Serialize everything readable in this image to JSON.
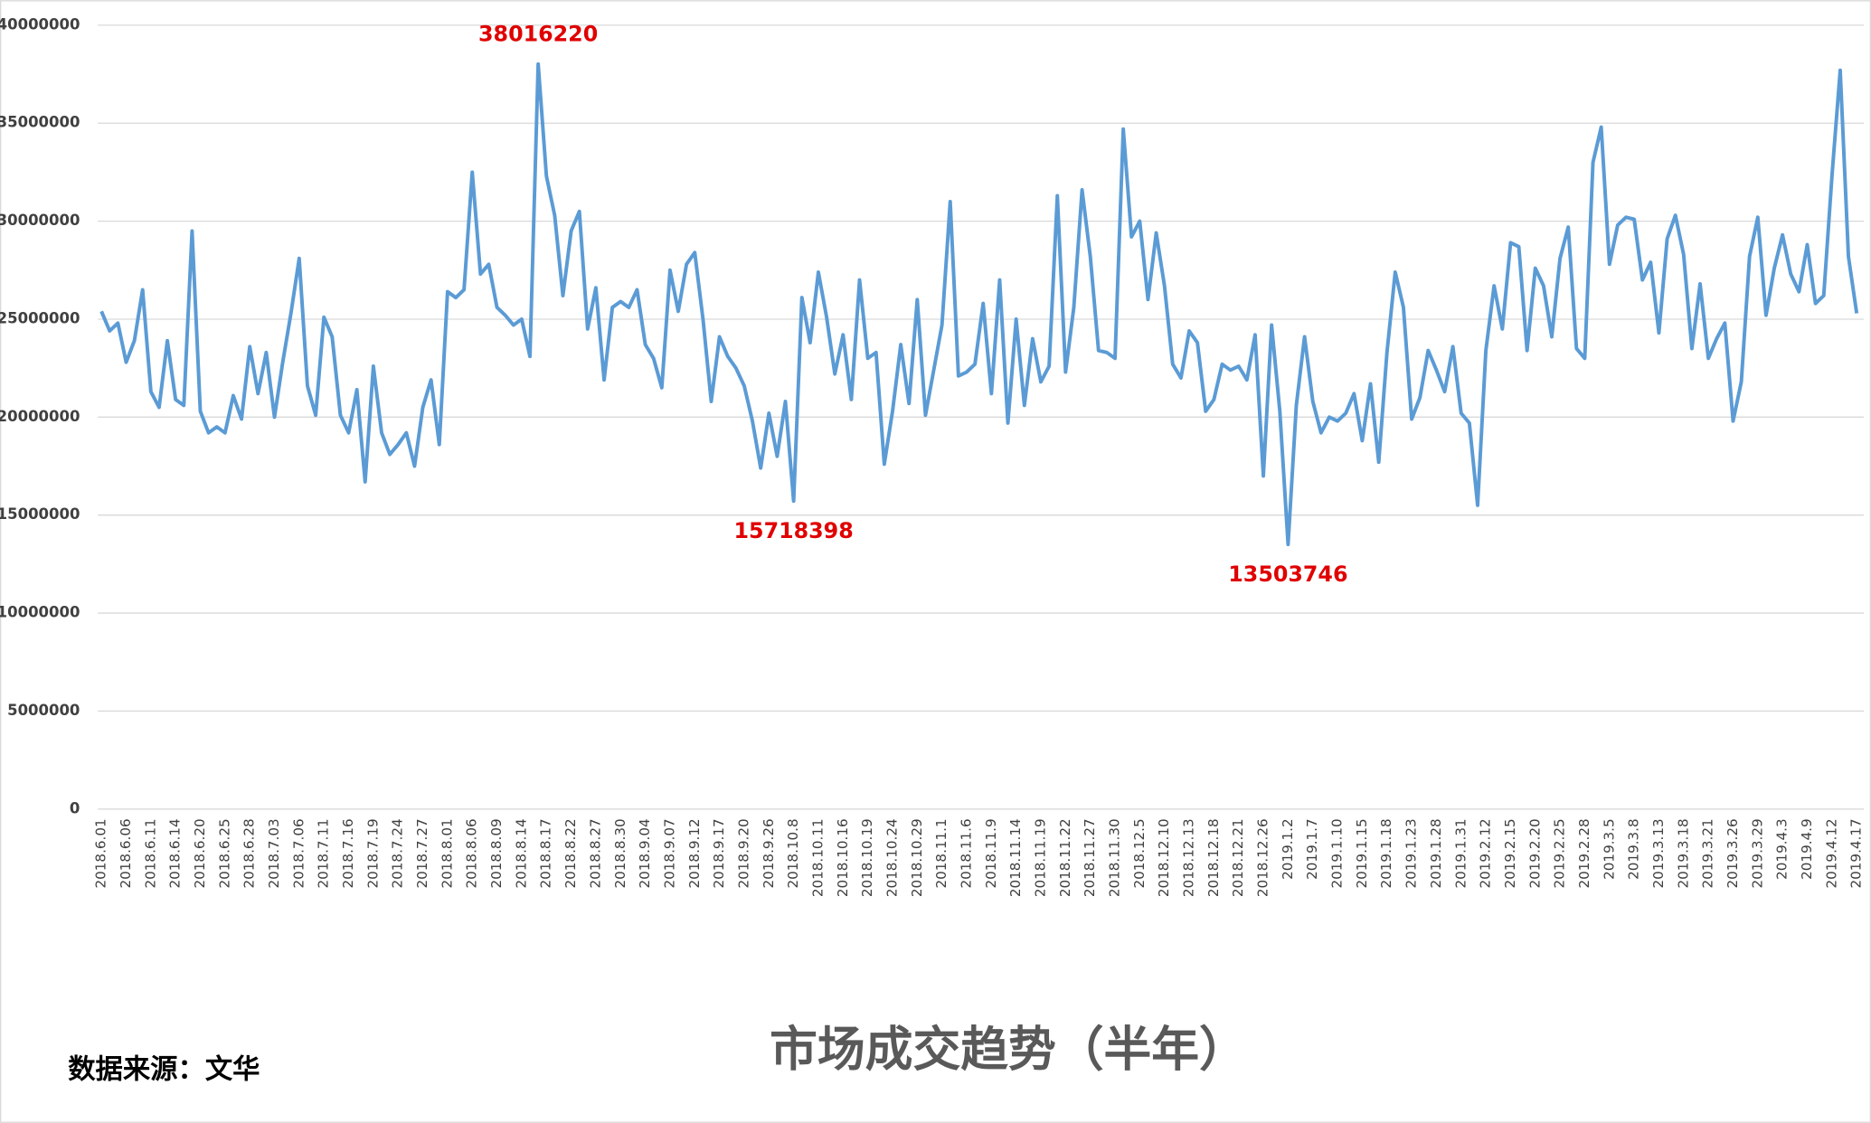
{
  "chart_data": {
    "type": "line",
    "title": "市场成交趋势（半年）",
    "source": "数据来源：文华",
    "grid": true,
    "ylim": [
      0,
      40000000
    ],
    "yticks": [
      0,
      5000000,
      10000000,
      15000000,
      20000000,
      25000000,
      30000000,
      35000000,
      40000000
    ],
    "categories": [
      "2018.6.01",
      null,
      null,
      "2018.6.06",
      null,
      null,
      "2018.6.11",
      null,
      null,
      "2018.6.14",
      null,
      null,
      "2018.6.20",
      null,
      null,
      "2018.6.25",
      null,
      null,
      "2018.6.28",
      null,
      null,
      "2018.7.03",
      null,
      null,
      "2018.7.06",
      null,
      null,
      "2018.7.11",
      null,
      null,
      "2018.7.16",
      null,
      null,
      "2018.7.19",
      null,
      null,
      "2018.7.24",
      null,
      null,
      "2018.7.27",
      null,
      null,
      "2018.8.01",
      null,
      null,
      "2018.8.06",
      null,
      null,
      "2018.8.09",
      null,
      null,
      "2018.8.14",
      null,
      null,
      "2018.8.17",
      null,
      null,
      "2018.8.22",
      null,
      null,
      "2018.8.27",
      null,
      null,
      "2018.8.30",
      null,
      null,
      "2018.9.04",
      null,
      null,
      "2018.9.07",
      null,
      null,
      "2018.9.12",
      null,
      null,
      "2018.9.17",
      null,
      null,
      "2018.9.20",
      null,
      null,
      "2018.9.26",
      null,
      null,
      "2018.10.8",
      null,
      null,
      "2018.10.11",
      null,
      null,
      "2018.10.16",
      null,
      null,
      "2018.10.19",
      null,
      null,
      "2018.10.24",
      null,
      null,
      "2018.10.29",
      null,
      null,
      "2018.11.1",
      null,
      null,
      "2018.11.6",
      null,
      null,
      "2018.11.9",
      null,
      null,
      "2018.11.14",
      null,
      null,
      "2018.11.19",
      null,
      null,
      "2018.11.22",
      null,
      null,
      "2018.11.27",
      null,
      null,
      "2018.11.30",
      null,
      null,
      "2018.12.5",
      null,
      null,
      "2018.12.10",
      null,
      null,
      "2018.12.13",
      null,
      null,
      "2018.12.18",
      null,
      null,
      "2018.12.21",
      null,
      null,
      "2018.12.26",
      null,
      null,
      "2019.1.2",
      null,
      null,
      "2019.1.7",
      null,
      null,
      "2019.1.10",
      null,
      null,
      "2019.1.15",
      null,
      null,
      "2019.1.18",
      null,
      null,
      "2019.1.23",
      null,
      null,
      "2019.1.28",
      null,
      null,
      "2019.1.31",
      null,
      null,
      "2019.2.12",
      null,
      null,
      "2019.2.15",
      null,
      null,
      "2019.2.20",
      null,
      null,
      "2019.2.25",
      null,
      null,
      "2019.2.28",
      null,
      null,
      "2019.3.5",
      null,
      null,
      "2019.3.8",
      null,
      null,
      "2019.3.13",
      null,
      null,
      "2019.3.18",
      null,
      null,
      "2019.3.21",
      null,
      null,
      "2019.3.26",
      null,
      null,
      "2019.3.29",
      null,
      null,
      "2019.4.3",
      null,
      null,
      "2019.4.9",
      null,
      null,
      "2019.4.12",
      null,
      null,
      "2019.4.17"
    ],
    "series": [
      {
        "color": "#5b9bd5",
        "values": [
          25400000,
          24400000,
          24800000,
          22800000,
          23900000,
          26500000,
          21300000,
          20500000,
          23900000,
          20900000,
          20600000,
          29500000,
          20300000,
          19200000,
          19500000,
          19200000,
          21100000,
          19900000,
          23600000,
          21200000,
          23300000,
          20000000,
          22800000,
          25300000,
          28100000,
          21600000,
          20100000,
          25100000,
          24100000,
          20100000,
          19200000,
          21400000,
          16700000,
          22600000,
          19200000,
          18100000,
          18600000,
          19200000,
          17500000,
          20500000,
          21900000,
          18600000,
          26400000,
          26100000,
          26500000,
          32500000,
          27300000,
          27800000,
          25600000,
          25200000,
          24700000,
          25000000,
          23100000,
          38016220,
          32300000,
          30300000,
          26200000,
          29500000,
          30500000,
          24500000,
          26600000,
          21900000,
          25600000,
          25900000,
          25600000,
          26500000,
          23700000,
          23000000,
          21500000,
          27500000,
          25400000,
          27800000,
          28400000,
          25000000,
          20800000,
          24100000,
          23100000,
          22500000,
          21600000,
          19800000,
          17400000,
          20200000,
          18000000,
          20800000,
          15718398,
          26100000,
          23800000,
          27400000,
          25100000,
          22200000,
          24200000,
          20900000,
          27000000,
          23000000,
          23300000,
          17600000,
          20300000,
          23700000,
          20700000,
          26000000,
          20100000,
          22400000,
          24700000,
          31000000,
          22100000,
          22300000,
          22700000,
          25800000,
          21200000,
          27000000,
          19700000,
          25000000,
          20600000,
          24000000,
          21800000,
          22600000,
          31300000,
          22300000,
          25600000,
          31600000,
          28200000,
          23400000,
          23300000,
          23000000,
          34700000,
          29200000,
          30000000,
          26000000,
          29400000,
          26700000,
          22700000,
          22000000,
          24400000,
          23800000,
          20300000,
          20900000,
          22700000,
          22400000,
          22600000,
          21900000,
          24200000,
          17000000,
          24700000,
          20300000,
          13503746,
          20600000,
          24100000,
          20800000,
          19200000,
          20000000,
          19800000,
          20200000,
          21200000,
          18800000,
          21700000,
          17700000,
          23300000,
          27400000,
          25600000,
          19900000,
          21000000,
          23400000,
          22400000,
          21300000,
          23600000,
          20200000,
          19700000,
          15500000,
          23400000,
          26700000,
          24500000,
          28900000,
          28700000,
          23400000,
          27600000,
          26700000,
          24100000,
          28100000,
          29700000,
          23500000,
          23000000,
          33000000,
          34800000,
          27800000,
          29800000,
          30200000,
          30100000,
          27000000,
          27900000,
          24300000,
          29100000,
          30300000,
          28300000,
          23500000,
          26800000,
          23000000,
          24000000,
          24800000,
          19800000,
          21800000,
          28200000,
          30200000,
          25200000,
          27600000,
          29300000,
          27300000,
          26400000,
          28800000,
          25800000,
          26200000,
          32300000,
          37700000,
          28200000,
          25300000
        ],
        "value_labels": [
          null,
          null,
          null,
          null,
          null,
          null,
          null,
          null,
          null,
          null,
          null,
          null,
          null,
          null,
          null,
          null,
          null,
          null,
          null,
          null,
          null,
          null,
          null,
          null,
          null,
          null,
          null,
          null,
          null,
          null,
          null,
          null,
          null,
          null,
          null,
          null,
          null,
          null,
          null,
          null,
          null,
          null,
          null,
          null,
          null,
          null,
          null,
          null,
          null,
          null,
          null,
          null,
          null,
          "38016220",
          null,
          null,
          null,
          null,
          null,
          null,
          null,
          null,
          null,
          null,
          null,
          null,
          null,
          null,
          null,
          null,
          null,
          null,
          null,
          null,
          null,
          null,
          null,
          null,
          null,
          null,
          null,
          null,
          null,
          null,
          "15718398",
          null,
          null,
          null,
          null,
          null,
          null,
          null,
          null,
          null,
          null,
          null,
          null,
          null,
          null,
          null,
          null,
          null,
          null,
          null,
          null,
          null,
          null,
          null,
          null,
          null,
          null,
          null,
          null,
          null,
          null,
          null,
          null,
          null,
          null,
          null,
          null,
          null,
          null,
          null,
          null,
          null,
          null,
          null,
          null,
          null,
          null,
          null,
          null,
          null,
          null,
          null,
          null,
          null,
          null,
          null,
          null,
          null,
          null,
          null,
          "13503746",
          null,
          null,
          null,
          null,
          null,
          null,
          null,
          null,
          null,
          null,
          null,
          null,
          null,
          null,
          null,
          null,
          null,
          null,
          null,
          null,
          null,
          null,
          null,
          null,
          null,
          null,
          null,
          null,
          null,
          null,
          null,
          null,
          null,
          null,
          null,
          null,
          null,
          null,
          null,
          null,
          null,
          null,
          null,
          null,
          null,
          null,
          null,
          null,
          null,
          null,
          null,
          null,
          null,
          null,
          null,
          null,
          null,
          null,
          null,
          null,
          null,
          null,
          null,
          null,
          null,
          null,
          null,
          null,
          null
        ]
      }
    ]
  }
}
